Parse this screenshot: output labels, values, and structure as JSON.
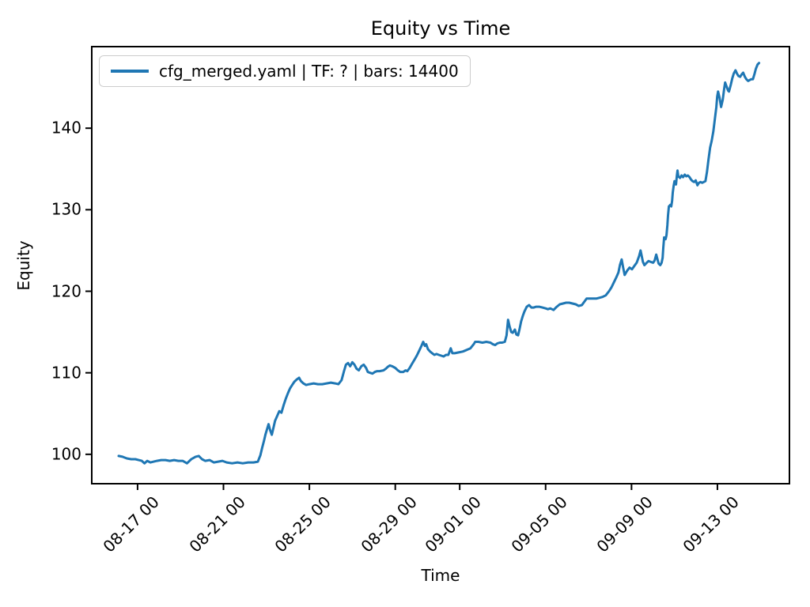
{
  "chart_data": {
    "type": "line",
    "title": "Equity vs Time",
    "xlabel": "Time",
    "ylabel": "Equity",
    "legend_position": "upper left",
    "grid": false,
    "x_unit": "days (0 = 08-16 00:00)",
    "xlim": [
      -1.17,
      31.39
    ],
    "ylim": [
      96.3,
      150.1
    ],
    "yticks": [
      100,
      110,
      120,
      130,
      140
    ],
    "xticks": [
      {
        "d": 1,
        "label": "08-17 00"
      },
      {
        "d": 5,
        "label": "08-21 00"
      },
      {
        "d": 9,
        "label": "08-25 00"
      },
      {
        "d": 13,
        "label": "08-29 00"
      },
      {
        "d": 16,
        "label": "09-01 00"
      },
      {
        "d": 20,
        "label": "09-05 00"
      },
      {
        "d": 24,
        "label": "09-09 00"
      },
      {
        "d": 28,
        "label": "09-13 00"
      }
    ],
    "series": [
      {
        "name": "cfg_merged.yaml | TF: ? | bars: 14400",
        "color": "#1f77b4",
        "points": [
          [
            0.12,
            99.8
          ],
          [
            0.3,
            99.7
          ],
          [
            0.5,
            99.5
          ],
          [
            0.7,
            99.4
          ],
          [
            0.9,
            99.4
          ],
          [
            1.05,
            99.3
          ],
          [
            1.2,
            99.2
          ],
          [
            1.32,
            98.9
          ],
          [
            1.45,
            99.2
          ],
          [
            1.6,
            99.0
          ],
          [
            1.75,
            99.1
          ],
          [
            1.9,
            99.2
          ],
          [
            2.1,
            99.3
          ],
          [
            2.3,
            99.3
          ],
          [
            2.5,
            99.2
          ],
          [
            2.7,
            99.3
          ],
          [
            2.9,
            99.2
          ],
          [
            3.1,
            99.2
          ],
          [
            3.3,
            98.9
          ],
          [
            3.5,
            99.4
          ],
          [
            3.7,
            99.7
          ],
          [
            3.85,
            99.8
          ],
          [
            4.0,
            99.4
          ],
          [
            4.15,
            99.2
          ],
          [
            4.35,
            99.3
          ],
          [
            4.55,
            99.0
          ],
          [
            4.75,
            99.1
          ],
          [
            4.95,
            99.2
          ],
          [
            5.15,
            99.0
          ],
          [
            5.4,
            98.9
          ],
          [
            5.65,
            99.0
          ],
          [
            5.9,
            98.9
          ],
          [
            6.15,
            99.0
          ],
          [
            6.4,
            99.0
          ],
          [
            6.6,
            99.1
          ],
          [
            6.72,
            99.9
          ],
          [
            6.8,
            100.8
          ],
          [
            6.88,
            101.6
          ],
          [
            6.95,
            102.4
          ],
          [
            7.03,
            103.1
          ],
          [
            7.1,
            103.7
          ],
          [
            7.18,
            102.9
          ],
          [
            7.25,
            102.4
          ],
          [
            7.33,
            103.3
          ],
          [
            7.4,
            104.1
          ],
          [
            7.5,
            104.7
          ],
          [
            7.6,
            105.3
          ],
          [
            7.7,
            105.1
          ],
          [
            7.8,
            106.0
          ],
          [
            7.9,
            106.8
          ],
          [
            8.0,
            107.5
          ],
          [
            8.1,
            108.1
          ],
          [
            8.2,
            108.5
          ],
          [
            8.3,
            108.9
          ],
          [
            8.42,
            109.2
          ],
          [
            8.52,
            109.4
          ],
          [
            8.6,
            109.0
          ],
          [
            8.72,
            108.7
          ],
          [
            8.85,
            108.5
          ],
          [
            9.0,
            108.6
          ],
          [
            9.2,
            108.7
          ],
          [
            9.4,
            108.6
          ],
          [
            9.6,
            108.6
          ],
          [
            9.8,
            108.7
          ],
          [
            10.0,
            108.8
          ],
          [
            10.2,
            108.7
          ],
          [
            10.35,
            108.6
          ],
          [
            10.5,
            109.1
          ],
          [
            10.6,
            110.1
          ],
          [
            10.7,
            111.0
          ],
          [
            10.8,
            111.2
          ],
          [
            10.9,
            110.8
          ],
          [
            11.0,
            111.3
          ],
          [
            11.1,
            111.0
          ],
          [
            11.2,
            110.5
          ],
          [
            11.3,
            110.3
          ],
          [
            11.42,
            110.8
          ],
          [
            11.53,
            111.0
          ],
          [
            11.64,
            110.6
          ],
          [
            11.72,
            110.1
          ],
          [
            11.83,
            110.0
          ],
          [
            11.94,
            109.9
          ],
          [
            12.05,
            110.1
          ],
          [
            12.16,
            110.2
          ],
          [
            12.27,
            110.2
          ],
          [
            12.45,
            110.3
          ],
          [
            12.56,
            110.5
          ],
          [
            12.64,
            110.7
          ],
          [
            12.75,
            110.9
          ],
          [
            12.86,
            110.8
          ],
          [
            13.0,
            110.6
          ],
          [
            13.12,
            110.3
          ],
          [
            13.23,
            110.1
          ],
          [
            13.37,
            110.1
          ],
          [
            13.48,
            110.3
          ],
          [
            13.56,
            110.2
          ],
          [
            13.67,
            110.6
          ],
          [
            13.78,
            111.1
          ],
          [
            13.89,
            111.6
          ],
          [
            14.0,
            112.1
          ],
          [
            14.11,
            112.7
          ],
          [
            14.22,
            113.3
          ],
          [
            14.3,
            113.8
          ],
          [
            14.38,
            113.3
          ],
          [
            14.44,
            113.5
          ],
          [
            14.52,
            112.9
          ],
          [
            14.62,
            112.6
          ],
          [
            14.72,
            112.4
          ],
          [
            14.82,
            112.2
          ],
          [
            14.92,
            112.3
          ],
          [
            15.03,
            112.2
          ],
          [
            15.14,
            112.1
          ],
          [
            15.25,
            112.0
          ],
          [
            15.36,
            112.2
          ],
          [
            15.47,
            112.2
          ],
          [
            15.58,
            113.0
          ],
          [
            15.66,
            112.4
          ],
          [
            15.77,
            112.4
          ],
          [
            15.95,
            112.5
          ],
          [
            16.14,
            112.6
          ],
          [
            16.32,
            112.8
          ],
          [
            16.5,
            113.0
          ],
          [
            16.65,
            113.5
          ],
          [
            16.72,
            113.8
          ],
          [
            16.87,
            113.8
          ],
          [
            17.06,
            113.7
          ],
          [
            17.24,
            113.8
          ],
          [
            17.43,
            113.7
          ],
          [
            17.55,
            113.5
          ],
          [
            17.65,
            113.4
          ],
          [
            17.75,
            113.6
          ],
          [
            17.87,
            113.7
          ],
          [
            17.98,
            113.7
          ],
          [
            18.1,
            113.8
          ],
          [
            18.18,
            114.6
          ],
          [
            18.25,
            116.5
          ],
          [
            18.32,
            115.7
          ],
          [
            18.4,
            115.0
          ],
          [
            18.47,
            114.9
          ],
          [
            18.57,
            115.3
          ],
          [
            18.64,
            114.7
          ],
          [
            18.72,
            114.6
          ],
          [
            18.79,
            115.4
          ],
          [
            18.86,
            116.3
          ],
          [
            18.94,
            117.0
          ],
          [
            19.01,
            117.5
          ],
          [
            19.12,
            118.1
          ],
          [
            19.23,
            118.3
          ],
          [
            19.34,
            118.0
          ],
          [
            19.45,
            118.0
          ],
          [
            19.56,
            118.1
          ],
          [
            19.7,
            118.1
          ],
          [
            19.85,
            118.0
          ],
          [
            20.0,
            117.9
          ],
          [
            20.11,
            117.8
          ],
          [
            20.22,
            117.9
          ],
          [
            20.37,
            117.7
          ],
          [
            20.52,
            118.1
          ],
          [
            20.66,
            118.4
          ],
          [
            20.81,
            118.5
          ],
          [
            20.95,
            118.6
          ],
          [
            21.1,
            118.6
          ],
          [
            21.25,
            118.5
          ],
          [
            21.4,
            118.4
          ],
          [
            21.54,
            118.2
          ],
          [
            21.69,
            118.3
          ],
          [
            21.8,
            118.7
          ],
          [
            21.91,
            119.1
          ],
          [
            22.06,
            119.1
          ],
          [
            22.21,
            119.1
          ],
          [
            22.36,
            119.1
          ],
          [
            22.5,
            119.2
          ],
          [
            22.65,
            119.3
          ],
          [
            22.8,
            119.5
          ],
          [
            22.95,
            120.0
          ],
          [
            23.07,
            120.5
          ],
          [
            23.18,
            121.1
          ],
          [
            23.29,
            121.7
          ],
          [
            23.39,
            122.3
          ],
          [
            23.46,
            123.2
          ],
          [
            23.54,
            123.9
          ],
          [
            23.61,
            122.9
          ],
          [
            23.68,
            122.0
          ],
          [
            23.79,
            122.5
          ],
          [
            23.91,
            122.9
          ],
          [
            24.02,
            122.7
          ],
          [
            24.13,
            123.1
          ],
          [
            24.24,
            123.5
          ],
          [
            24.35,
            124.3
          ],
          [
            24.42,
            125.0
          ],
          [
            24.53,
            123.6
          ],
          [
            24.6,
            123.2
          ],
          [
            24.71,
            123.5
          ],
          [
            24.79,
            123.7
          ],
          [
            24.9,
            123.6
          ],
          [
            25.01,
            123.5
          ],
          [
            25.08,
            123.8
          ],
          [
            25.15,
            124.5
          ],
          [
            25.26,
            123.4
          ],
          [
            25.34,
            123.2
          ],
          [
            25.4,
            123.5
          ],
          [
            25.45,
            124.1
          ],
          [
            25.48,
            125.3
          ],
          [
            25.52,
            126.6
          ],
          [
            25.59,
            126.4
          ],
          [
            25.63,
            126.9
          ],
          [
            25.67,
            128.1
          ],
          [
            25.7,
            129.3
          ],
          [
            25.74,
            130.4
          ],
          [
            25.81,
            130.6
          ],
          [
            25.85,
            130.4
          ],
          [
            25.89,
            131.1
          ],
          [
            25.92,
            132.1
          ],
          [
            25.96,
            132.9
          ],
          [
            26.0,
            133.5
          ],
          [
            26.07,
            133.1
          ],
          [
            26.11,
            134.1
          ],
          [
            26.14,
            134.8
          ],
          [
            26.18,
            134.1
          ],
          [
            26.26,
            133.9
          ],
          [
            26.33,
            134.2
          ],
          [
            26.4,
            134.0
          ],
          [
            26.48,
            134.3
          ],
          [
            26.55,
            134.1
          ],
          [
            26.62,
            134.2
          ],
          [
            26.7,
            134.0
          ],
          [
            26.77,
            133.7
          ],
          [
            26.84,
            133.5
          ],
          [
            26.92,
            133.4
          ],
          [
            26.99,
            133.6
          ],
          [
            27.07,
            133.0
          ],
          [
            27.14,
            133.3
          ],
          [
            27.21,
            133.4
          ],
          [
            27.29,
            133.3
          ],
          [
            27.36,
            133.4
          ],
          [
            27.44,
            133.5
          ],
          [
            27.51,
            134.6
          ],
          [
            27.58,
            136.1
          ],
          [
            27.66,
            137.6
          ],
          [
            27.73,
            138.4
          ],
          [
            27.81,
            139.6
          ],
          [
            27.88,
            141.1
          ],
          [
            27.95,
            142.6
          ],
          [
            27.99,
            143.9
          ],
          [
            28.03,
            144.5
          ],
          [
            28.1,
            143.7
          ],
          [
            28.17,
            142.6
          ],
          [
            28.25,
            143.5
          ],
          [
            28.32,
            144.9
          ],
          [
            28.36,
            145.6
          ],
          [
            28.43,
            145.1
          ],
          [
            28.5,
            144.6
          ],
          [
            28.54,
            144.5
          ],
          [
            28.62,
            145.3
          ],
          [
            28.69,
            146.1
          ],
          [
            28.76,
            146.7
          ],
          [
            28.84,
            147.1
          ],
          [
            28.91,
            146.7
          ],
          [
            28.98,
            146.4
          ],
          [
            29.06,
            146.3
          ],
          [
            29.13,
            146.6
          ],
          [
            29.2,
            146.8
          ],
          [
            29.28,
            146.3
          ],
          [
            29.35,
            146.0
          ],
          [
            29.43,
            145.8
          ],
          [
            29.5,
            145.9
          ],
          [
            29.57,
            146.0
          ],
          [
            29.65,
            146.0
          ],
          [
            29.72,
            146.6
          ],
          [
            29.79,
            147.3
          ],
          [
            29.87,
            147.8
          ],
          [
            29.94,
            148.0
          ]
        ]
      }
    ]
  },
  "colors": {
    "line": "#1f77b4",
    "legend_border": "#cccccc",
    "frame": "#000000",
    "text": "#000000",
    "background": "#ffffff"
  }
}
